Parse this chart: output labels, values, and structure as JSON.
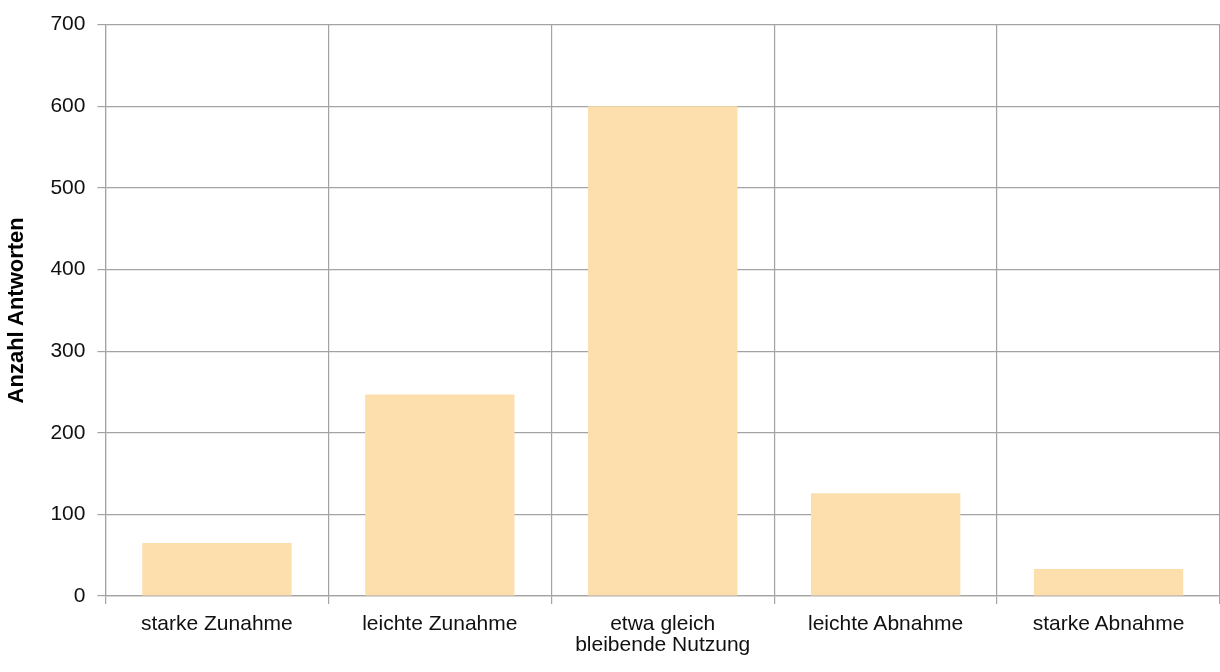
{
  "chart_data": {
    "type": "bar",
    "ylabel": "Anzahl Antworten",
    "categories": [
      "starke Zunahme",
      "leichte Zunahme",
      "etwa gleich bleibende Nutzung",
      "leichte Abnahme",
      "starke Abnahme"
    ],
    "values": [
      65,
      247,
      600,
      126,
      33
    ],
    "color": "#fddfad",
    "ylim": [
      0,
      700
    ],
    "yticks": [
      0,
      100,
      200,
      300,
      400,
      500,
      600,
      700
    ],
    "grid": true
  }
}
